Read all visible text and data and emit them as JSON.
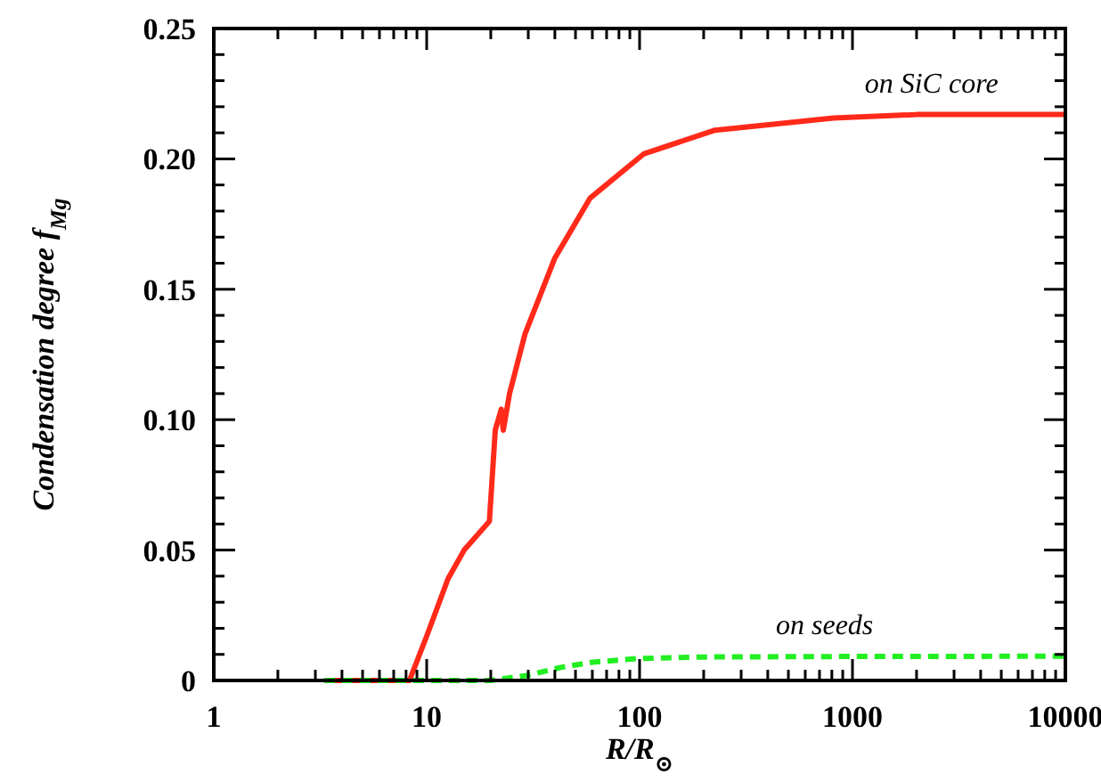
{
  "chart_data": {
    "type": "line",
    "xlabel": "R/R$_{⊙}$",
    "ylabel": "Condensation degree f$_{Mg}$",
    "log": "x",
    "grid": false,
    "xlim": [
      1,
      10000
    ],
    "ylim": [
      0,
      0.25
    ],
    "xticks": [
      1,
      {
        "value": 2,
        "label": null
      },
      {
        "value": 3,
        "label": null
      },
      {
        "value": 4,
        "label": null
      },
      {
        "value": 5,
        "label": null
      },
      {
        "value": 6,
        "label": null
      },
      {
        "value": 7,
        "label": null
      },
      {
        "value": 8,
        "label": null
      },
      {
        "value": 9,
        "label": null
      },
      10,
      {
        "value": 20,
        "label": null
      },
      {
        "value": 30,
        "label": null
      },
      {
        "value": 40,
        "label": null
      },
      {
        "value": 50,
        "label": null
      },
      {
        "value": 60,
        "label": null
      },
      {
        "value": 70,
        "label": null
      },
      {
        "value": 80,
        "label": null
      },
      {
        "value": 90,
        "label": null
      },
      100,
      {
        "value": 200,
        "label": null
      },
      {
        "value": 300,
        "label": null
      },
      {
        "value": 400,
        "label": null
      },
      {
        "value": 500,
        "label": null
      },
      {
        "value": 600,
        "label": null
      },
      {
        "value": 700,
        "label": null
      },
      {
        "value": 800,
        "label": null
      },
      {
        "value": 900,
        "label": null
      },
      1000,
      {
        "value": 2000,
        "label": null
      },
      {
        "value": 3000,
        "label": null
      },
      {
        "value": 4000,
        "label": null
      },
      {
        "value": 5000,
        "label": null
      },
      {
        "value": 6000,
        "label": null
      },
      {
        "value": 7000,
        "label": null
      },
      {
        "value": 8000,
        "label": null
      },
      {
        "value": 9000,
        "label": null
      },
      10000
    ],
    "yticks": [
      0,
      {
        "value": 0.01,
        "label": null
      },
      {
        "value": 0.02,
        "label": null
      },
      {
        "value": 0.03,
        "label": null
      },
      {
        "value": 0.04,
        "label": null
      },
      0.05,
      {
        "value": 0.06,
        "label": null
      },
      {
        "value": 0.07,
        "label": null
      },
      {
        "value": 0.08,
        "label": null
      },
      {
        "value": 0.09,
        "label": null
      },
      {
        "value": 0.1,
        "label": "0.10"
      },
      {
        "value": 0.11,
        "label": null
      },
      {
        "value": 0.12,
        "label": null
      },
      {
        "value": 0.13,
        "label": null
      },
      {
        "value": 0.14,
        "label": null
      },
      0.15,
      {
        "value": 0.16,
        "label": null
      },
      {
        "value": 0.17,
        "label": null
      },
      {
        "value": 0.18,
        "label": null
      },
      {
        "value": 0.19,
        "label": null
      },
      {
        "value": 0.2,
        "label": "0.20"
      },
      {
        "value": 0.21,
        "label": null
      },
      {
        "value": 0.22,
        "label": null
      },
      {
        "value": 0.23,
        "label": null
      },
      {
        "value": 0.24,
        "label": null
      },
      0.25
    ],
    "series": [
      {
        "name": "on SiC core",
        "color": "#ff2a1a",
        "line_style": "solid",
        "x": [
          3.3,
          8.3,
          10,
          12.6,
          15,
          19.7,
          21,
          22.4,
          22.9,
          24.5,
          29,
          40,
          58.6,
          105,
          226,
          815,
          2000,
          10000
        ],
        "values": [
          0,
          0,
          0.017,
          0.039,
          0.05,
          0.061,
          0.096,
          0.104,
          0.096,
          0.11,
          0.133,
          0.162,
          0.185,
          0.202,
          0.211,
          0.2157,
          0.217,
          0.217
        ]
      },
      {
        "name": "on seeds",
        "color": "#22ee22",
        "line_style": "dashed",
        "x": [
          3.3,
          10,
          20,
          30,
          42.6,
          60,
          98,
          200,
          1000,
          10000
        ],
        "values": [
          0,
          0,
          0,
          0.002,
          0.005,
          0.007,
          0.0084,
          0.009,
          0.0092,
          0.0093
        ]
      }
    ]
  }
}
